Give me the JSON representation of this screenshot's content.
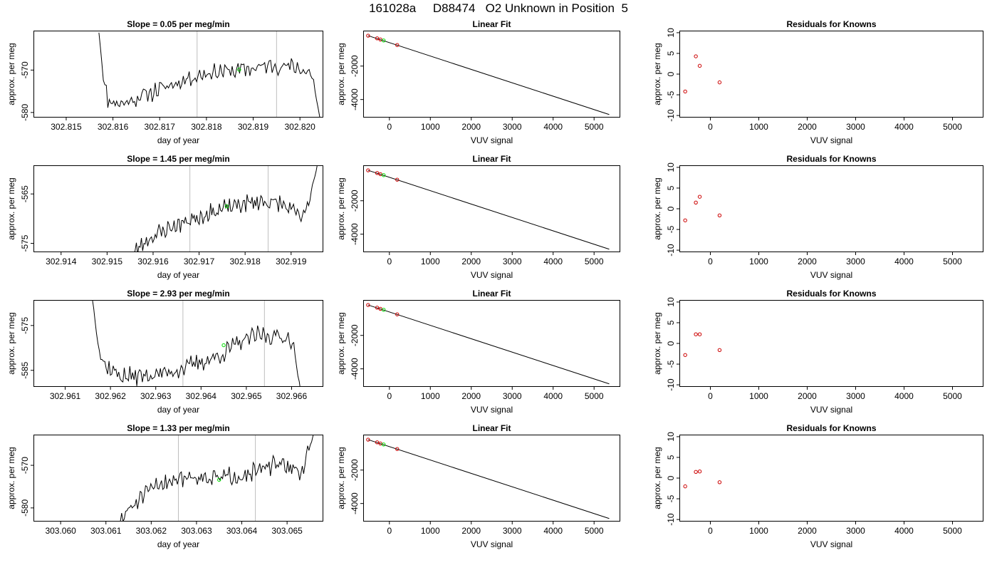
{
  "page": {
    "title": "161028a     D88474   O2 Unknown in Position  5"
  },
  "chart_data": [
    {
      "row": 1,
      "column": 1,
      "type": "line",
      "title": "Slope =  0.05  per meg/min",
      "xlabel": "day of year",
      "ylabel": "approx. per meg",
      "xlim": [
        302.8143,
        302.8205
      ],
      "ylim": [
        -581.2,
        -560.7
      ],
      "xticks": [
        302.815,
        302.816,
        302.817,
        302.818,
        302.819,
        302.82
      ],
      "xtick_labels": [
        "302.815",
        "302.816",
        "302.817",
        "302.818",
        "302.819",
        "302.820"
      ],
      "yticks": [
        -570,
        -580
      ],
      "ytick_labels": [
        "-570",
        "-580"
      ],
      "vlines": [
        302.8178,
        302.8195
      ],
      "green_point": {
        "x": 302.8187,
        "y": -569.9
      },
      "trace": {
        "start": 302.8157,
        "end": 302.82045,
        "base": [
          [
            0,
            -561
          ],
          [
            0.02,
            -572
          ],
          [
            0.04,
            -577
          ],
          [
            0.1,
            -578
          ],
          [
            0.2,
            -576
          ],
          [
            0.3,
            -574
          ],
          [
            0.4,
            -572
          ],
          [
            0.5,
            -570.5
          ],
          [
            0.6,
            -570.2
          ],
          [
            0.7,
            -569.5
          ],
          [
            0.8,
            -568.8
          ],
          [
            0.9,
            -569.5
          ],
          [
            0.96,
            -571
          ],
          [
            1,
            -583
          ]
        ],
        "noise": 1.6,
        "seed": 11
      }
    },
    {
      "row": 1,
      "column": 2,
      "type": "scatter",
      "title": "Linear Fit",
      "xlabel": "VUV signal",
      "ylabel": "approx. per meg",
      "xlim": [
        -640,
        5640
      ],
      "ylim": [
        -5080,
        120
      ],
      "xticks": [
        0,
        1000,
        2000,
        3000,
        4000,
        5000
      ],
      "xtick_labels": [
        "0",
        "1000",
        "2000",
        "3000",
        "4000",
        "5000"
      ],
      "yticks": [
        -2000,
        -4000
      ],
      "ytick_labels": [
        "-2000",
        "-4000"
      ],
      "fit_line": [
        [
          -520,
          -180
        ],
        [
          5370,
          -4900
        ]
      ],
      "known_points": [
        {
          "x": -520,
          "y": -180
        },
        {
          "x": -300,
          "y": -340
        },
        {
          "x": -220,
          "y": -410
        },
        {
          "x": 190,
          "y": -740
        }
      ],
      "unknown_point": {
        "x": -140,
        "y": -470
      }
    },
    {
      "row": 1,
      "column": 3,
      "type": "scatter",
      "title": "Residuals for Knowns",
      "xlabel": "VUV signal",
      "ylabel": "approx. per meg",
      "xlim": [
        -640,
        5640
      ],
      "ylim": [
        -10.5,
        10.5
      ],
      "xticks": [
        0,
        1000,
        2000,
        3000,
        4000,
        5000
      ],
      "xtick_labels": [
        "0",
        "1000",
        "2000",
        "3000",
        "4000",
        "5000"
      ],
      "yticks": [
        -10,
        -5,
        0,
        5,
        10
      ],
      "ytick_labels": [
        "-10",
        "-5",
        "0",
        "5",
        "10"
      ],
      "points": [
        {
          "x": -520,
          "y": -4.2
        },
        {
          "x": -300,
          "y": 4.3
        },
        {
          "x": -220,
          "y": 2.0
        },
        {
          "x": 190,
          "y": -2.0
        }
      ]
    },
    {
      "row": 2,
      "column": 1,
      "type": "line",
      "title": "Slope =  1.45  per meg/min",
      "xlabel": "day of year",
      "ylabel": "approx. per meg",
      "xlim": [
        302.9134,
        302.9197
      ],
      "ylim": [
        -576.8,
        -559.2
      ],
      "xticks": [
        302.914,
        302.915,
        302.916,
        302.917,
        302.918,
        302.919
      ],
      "xtick_labels": [
        "302.914",
        "302.915",
        "302.916",
        "302.917",
        "302.918",
        "302.919"
      ],
      "yticks": [
        -565,
        -575
      ],
      "ytick_labels": [
        "-565",
        "-575"
      ],
      "vlines": [
        302.9168,
        302.9185
      ],
      "green_point": {
        "x": 302.9176,
        "y": -567.5
      },
      "trace": {
        "start": 302.9155,
        "end": 302.9196,
        "base": [
          [
            0,
            -578
          ],
          [
            0.04,
            -576
          ],
          [
            0.1,
            -574
          ],
          [
            0.2,
            -572
          ],
          [
            0.3,
            -570.5
          ],
          [
            0.4,
            -569
          ],
          [
            0.5,
            -568
          ],
          [
            0.6,
            -567
          ],
          [
            0.7,
            -566.5
          ],
          [
            0.8,
            -567
          ],
          [
            0.88,
            -569
          ],
          [
            0.92,
            -570
          ],
          [
            0.95,
            -566
          ],
          [
            1,
            -558
          ]
        ],
        "noise": 1.4,
        "seed": 23
      }
    },
    {
      "row": 2,
      "column": 2,
      "type": "scatter",
      "title": "Linear Fit",
      "xlabel": "VUV signal",
      "ylabel": "approx. per meg",
      "xlim": [
        -640,
        5640
      ],
      "ylim": [
        -5080,
        120
      ],
      "xticks": [
        0,
        1000,
        2000,
        3000,
        4000,
        5000
      ],
      "xtick_labels": [
        "0",
        "1000",
        "2000",
        "3000",
        "4000",
        "5000"
      ],
      "yticks": [
        -2000,
        -4000
      ],
      "ytick_labels": [
        "-2000",
        "-4000"
      ],
      "fit_line": [
        [
          -520,
          -180
        ],
        [
          5370,
          -4900
        ]
      ],
      "known_points": [
        {
          "x": -520,
          "y": -180
        },
        {
          "x": -300,
          "y": -340
        },
        {
          "x": -220,
          "y": -410
        },
        {
          "x": 190,
          "y": -740
        }
      ],
      "unknown_point": {
        "x": -140,
        "y": -470
      }
    },
    {
      "row": 2,
      "column": 3,
      "type": "scatter",
      "title": "Residuals for Knowns",
      "xlabel": "VUV signal",
      "ylabel": "approx. per meg",
      "xlim": [
        -640,
        5640
      ],
      "ylim": [
        -10.5,
        10.5
      ],
      "xticks": [
        0,
        1000,
        2000,
        3000,
        4000,
        5000
      ],
      "xtick_labels": [
        "0",
        "1000",
        "2000",
        "3000",
        "4000",
        "5000"
      ],
      "yticks": [
        -10,
        -5,
        0,
        5,
        10
      ],
      "ytick_labels": [
        "-10",
        "-5",
        "0",
        "5",
        "10"
      ],
      "points": [
        {
          "x": -520,
          "y": -2.8
        },
        {
          "x": -300,
          "y": 1.5
        },
        {
          "x": -220,
          "y": 2.9
        },
        {
          "x": 190,
          "y": -1.6
        }
      ]
    },
    {
      "row": 3,
      "column": 1,
      "type": "line",
      "title": "Slope =  2.93  per meg/min",
      "xlabel": "day of year",
      "ylabel": "approx. per meg",
      "xlim": [
        302.9603,
        302.9667
      ],
      "ylim": [
        -588.7,
        -569.3
      ],
      "xticks": [
        302.961,
        302.962,
        302.963,
        302.964,
        302.965,
        302.966
      ],
      "xtick_labels": [
        "302.961",
        "302.962",
        "302.963",
        "302.964",
        "302.965",
        "302.966"
      ],
      "yticks": [
        -575,
        -585
      ],
      "ytick_labels": [
        "-575",
        "-585"
      ],
      "vlines": [
        302.9636,
        302.9654
      ],
      "green_point": {
        "x": 302.9645,
        "y": -579.4
      },
      "trace": {
        "start": 302.9616,
        "end": 302.9662,
        "base": [
          [
            0,
            -569
          ],
          [
            0.03,
            -580
          ],
          [
            0.06,
            -584
          ],
          [
            0.15,
            -586.5
          ],
          [
            0.3,
            -586
          ],
          [
            0.4,
            -585
          ],
          [
            0.5,
            -583.5
          ],
          [
            0.6,
            -582
          ],
          [
            0.7,
            -579
          ],
          [
            0.8,
            -577
          ],
          [
            0.9,
            -577.5
          ],
          [
            0.96,
            -578
          ],
          [
            1,
            -590
          ]
        ],
        "noise": 1.6,
        "seed": 37
      }
    },
    {
      "row": 3,
      "column": 2,
      "type": "scatter",
      "title": "Linear Fit",
      "xlabel": "VUV signal",
      "ylabel": "approx. per meg",
      "xlim": [
        -640,
        5640
      ],
      "ylim": [
        -5080,
        120
      ],
      "xticks": [
        0,
        1000,
        2000,
        3000,
        4000,
        5000
      ],
      "xtick_labels": [
        "0",
        "1000",
        "2000",
        "3000",
        "4000",
        "5000"
      ],
      "yticks": [
        -2000,
        -4000
      ],
      "ytick_labels": [
        "-2000",
        "-4000"
      ],
      "fit_line": [
        [
          -520,
          -180
        ],
        [
          5370,
          -4900
        ]
      ],
      "known_points": [
        {
          "x": -520,
          "y": -180
        },
        {
          "x": -300,
          "y": -340
        },
        {
          "x": -220,
          "y": -410
        },
        {
          "x": 190,
          "y": -740
        }
      ],
      "unknown_point": {
        "x": -140,
        "y": -470
      }
    },
    {
      "row": 3,
      "column": 3,
      "type": "scatter",
      "title": "Residuals for Knowns",
      "xlabel": "VUV signal",
      "ylabel": "approx. per meg",
      "xlim": [
        -640,
        5640
      ],
      "ylim": [
        -10.5,
        10.5
      ],
      "xticks": [
        0,
        1000,
        2000,
        3000,
        4000,
        5000
      ],
      "xtick_labels": [
        "0",
        "1000",
        "2000",
        "3000",
        "4000",
        "5000"
      ],
      "yticks": [
        -10,
        -5,
        0,
        5,
        10
      ],
      "ytick_labels": [
        "-10",
        "-5",
        "0",
        "5",
        "10"
      ],
      "points": [
        {
          "x": -520,
          "y": -2.8
        },
        {
          "x": -300,
          "y": 2.2
        },
        {
          "x": -220,
          "y": 2.2
        },
        {
          "x": 190,
          "y": -1.6
        }
      ]
    },
    {
      "row": 4,
      "column": 1,
      "type": "line",
      "title": "Slope =  1.33  per meg/min",
      "xlabel": "day of year",
      "ylabel": "approx. per meg",
      "xlim": [
        303.0594,
        303.0658
      ],
      "ylim": [
        -583.2,
        -562.8
      ],
      "xticks": [
        303.06,
        303.061,
        303.062,
        303.063,
        303.064,
        303.065
      ],
      "xtick_labels": [
        "303.060",
        "303.061",
        "303.062",
        "303.063",
        "303.064",
        "303.065"
      ],
      "yticks": [
        -570,
        -580
      ],
      "ytick_labels": [
        "-570",
        "-580"
      ],
      "vlines": [
        303.0626,
        303.0643
      ],
      "green_point": {
        "x": 303.0635,
        "y": -573.4
      },
      "trace": {
        "start": 303.0612,
        "end": 303.0656,
        "base": [
          [
            0,
            -586
          ],
          [
            0.04,
            -582
          ],
          [
            0.1,
            -579
          ],
          [
            0.2,
            -575
          ],
          [
            0.3,
            -573
          ],
          [
            0.4,
            -572.5
          ],
          [
            0.5,
            -573
          ],
          [
            0.6,
            -572.5
          ],
          [
            0.7,
            -571.5
          ],
          [
            0.8,
            -570
          ],
          [
            0.9,
            -570.5
          ],
          [
            0.94,
            -572
          ],
          [
            1,
            -562
          ]
        ],
        "noise": 1.6,
        "seed": 51
      }
    },
    {
      "row": 4,
      "column": 2,
      "type": "scatter",
      "title": "Linear Fit",
      "xlabel": "VUV signal",
      "ylabel": "approx. per meg",
      "xlim": [
        -640,
        5640
      ],
      "ylim": [
        -5080,
        120
      ],
      "xticks": [
        0,
        1000,
        2000,
        3000,
        4000,
        5000
      ],
      "xtick_labels": [
        "0",
        "1000",
        "2000",
        "3000",
        "4000",
        "5000"
      ],
      "yticks": [
        -2000,
        -4000
      ],
      "ytick_labels": [
        "-2000",
        "-4000"
      ],
      "fit_line": [
        [
          -520,
          -180
        ],
        [
          5370,
          -4900
        ]
      ],
      "known_points": [
        {
          "x": -520,
          "y": -180
        },
        {
          "x": -300,
          "y": -340
        },
        {
          "x": -220,
          "y": -410
        },
        {
          "x": 190,
          "y": -740
        }
      ],
      "unknown_point": {
        "x": -140,
        "y": -470
      }
    },
    {
      "row": 4,
      "column": 3,
      "type": "scatter",
      "title": "Residuals for Knowns",
      "xlabel": "VUV signal",
      "ylabel": "approx. per meg",
      "xlim": [
        -640,
        5640
      ],
      "ylim": [
        -10.5,
        10.5
      ],
      "xticks": [
        0,
        1000,
        2000,
        3000,
        4000,
        5000
      ],
      "xtick_labels": [
        "0",
        "1000",
        "2000",
        "3000",
        "4000",
        "5000"
      ],
      "yticks": [
        -10,
        -5,
        0,
        5,
        10
      ],
      "ytick_labels": [
        "-10",
        "-5",
        "0",
        "5",
        "10"
      ],
      "points": [
        {
          "x": -520,
          "y": -2.0
        },
        {
          "x": -300,
          "y": 1.5
        },
        {
          "x": -220,
          "y": 1.6
        },
        {
          "x": 190,
          "y": -1.0
        }
      ]
    }
  ],
  "colors": {
    "trace": "#000000",
    "vline": "#bebebe",
    "known_point": "#cc0000",
    "unknown_point": "#00dd00",
    "frame": "#000000"
  }
}
